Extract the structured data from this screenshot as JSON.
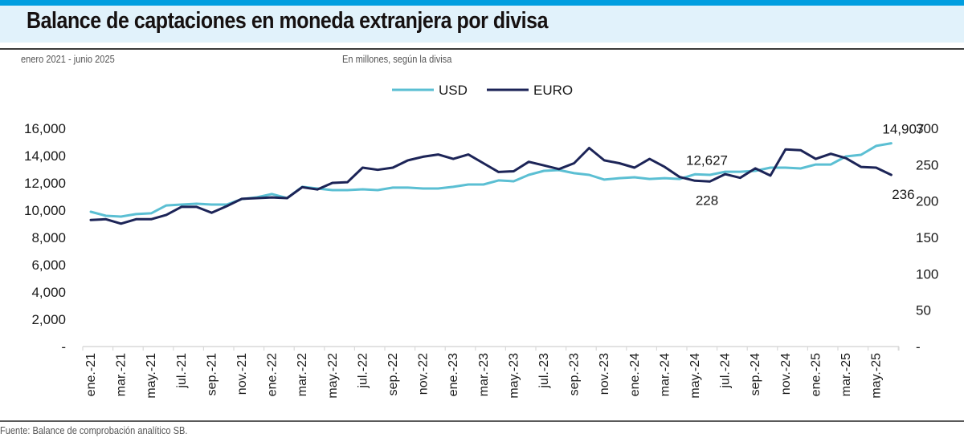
{
  "header": {
    "title": "Balance de captaciones en moneda extranjera por divisa",
    "period": "enero 2021 - junio 2025",
    "units": "En millones, según la divisa"
  },
  "footer": {
    "source": "Fuente: Balance de comprobación analítico SB."
  },
  "colors": {
    "top_bar": "#009ee0",
    "title_band": "#e1f2fb",
    "usd": "#5bbfd3",
    "euro": "#1c2457"
  },
  "chart_data": {
    "type": "line",
    "title": "Balance de captaciones en moneda extranjera por divisa",
    "subtitle": "enero 2021 - junio 2025",
    "xlabel": "",
    "ylabel": "En millones, según la divisa",
    "legend": {
      "placement": "top-center",
      "entries": [
        "USD",
        "EURO"
      ]
    },
    "grid": false,
    "categories": [
      "ene.-21",
      "feb.-21",
      "mar.-21",
      "abr.-21",
      "may.-21",
      "jun.-21",
      "jul.-21",
      "ago.-21",
      "sep.-21",
      "oct.-21",
      "nov.-21",
      "dic.-21",
      "ene.-22",
      "feb.-22",
      "mar.-22",
      "abr.-22",
      "may.-22",
      "jun.-22",
      "jul.-22",
      "ago.-22",
      "sep.-22",
      "oct.-22",
      "nov.-22",
      "dic.-22",
      "ene.-23",
      "feb.-23",
      "mar.-23",
      "abr.-23",
      "may.-23",
      "jun.-23",
      "jul.-23",
      "ago.-23",
      "sep.-23",
      "oct.-23",
      "nov.-23",
      "dic.-23",
      "ene.-24",
      "feb.-24",
      "mar.-24",
      "abr.-24",
      "may.-24",
      "jun.-24",
      "jul.-24",
      "ago.-24",
      "sep.-24",
      "oct.-24",
      "nov.-24",
      "dic.-24",
      "ene.-25",
      "feb.-25",
      "mar.-25",
      "abr.-25",
      "may.-25",
      "jun.-25"
    ],
    "x_tick_labels": [
      "ene.-21",
      "mar.-21",
      "may.-21",
      "jul.-21",
      "sep.-21",
      "nov.-21",
      "ene.-22",
      "mar.-22",
      "may.-22",
      "jul.-22",
      "sep.-22",
      "nov.-22",
      "ene.-23",
      "mar.-23",
      "may.-23",
      "jul.-23",
      "sep.-23",
      "nov.-23",
      "ene.-24",
      "mar.-24",
      "may.-24",
      "jul.-24",
      "sep.-24",
      "nov.-24",
      "ene.-25",
      "mar.-25",
      "may.-25"
    ],
    "y_left": {
      "label": "USD",
      "range": [
        0,
        16000
      ],
      "ticks": [
        0,
        2000,
        4000,
        6000,
        8000,
        10000,
        12000,
        14000,
        16000
      ],
      "tick_labels": [
        "-",
        "2,000",
        "4,000",
        "6,000",
        "8,000",
        "10,000",
        "12,000",
        "14,000",
        "16,000"
      ]
    },
    "y_right": {
      "label": "EURO",
      "range": [
        0,
        300
      ],
      "ticks": [
        0,
        50,
        100,
        150,
        200,
        250,
        300
      ],
      "tick_labels": [
        "-",
        "50",
        "100",
        "150",
        "200",
        "250",
        "300"
      ]
    },
    "series": [
      {
        "name": "USD",
        "axis": "left",
        "values": [
          9880,
          9590,
          9530,
          9710,
          9770,
          10350,
          10410,
          10470,
          10410,
          10410,
          10820,
          10940,
          11180,
          10880,
          11710,
          11590,
          11470,
          11470,
          11530,
          11470,
          11650,
          11650,
          11590,
          11590,
          11710,
          11880,
          11880,
          12180,
          12120,
          12590,
          12880,
          12940,
          12710,
          12590,
          12240,
          12350,
          12410,
          12290,
          12350,
          12290,
          12627,
          12590,
          12820,
          12820,
          12880,
          13120,
          13120,
          13060,
          13350,
          13350,
          13940,
          14060,
          14710,
          14907
        ]
      },
      {
        "name": "EURO",
        "axis": "right",
        "values": [
          174,
          175,
          169,
          175,
          175,
          181,
          192,
          192,
          184,
          193,
          203,
          204,
          205,
          204,
          219,
          216,
          225,
          226,
          246,
          243,
          246,
          256,
          261,
          264,
          258,
          264,
          252,
          240,
          241,
          254,
          249,
          244,
          252,
          273,
          256,
          252,
          246,
          258,
          247,
          233,
          228,
          227,
          237,
          232,
          245,
          235,
          271,
          270,
          258,
          265,
          259,
          247,
          246,
          236
        ]
      }
    ],
    "annotations": [
      {
        "series": "USD",
        "category": "may.-24",
        "text": "12,627",
        "position": "above"
      },
      {
        "series": "EURO",
        "category": "may.-24",
        "text": "228",
        "position": "below"
      },
      {
        "series": "USD",
        "category": "jun.-25",
        "text": "14,907",
        "position": "above"
      },
      {
        "series": "EURO",
        "category": "jun.-25",
        "text": "236",
        "position": "below"
      }
    ]
  }
}
